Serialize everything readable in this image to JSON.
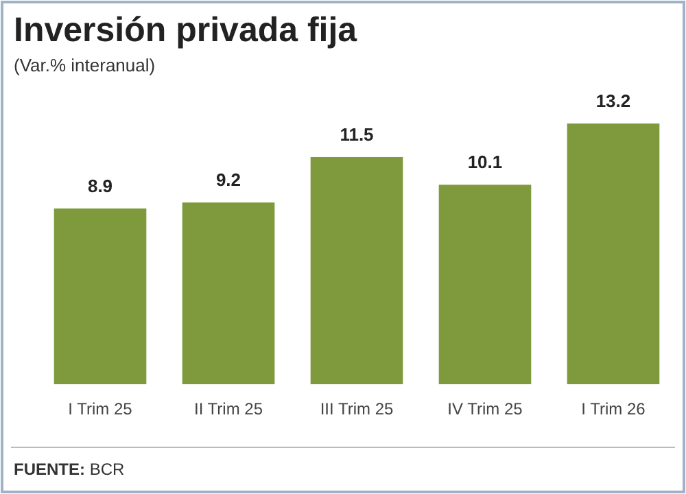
{
  "chart_data": {
    "type": "bar",
    "title": "Inversión privada fija",
    "subtitle": "(Var.% interanual)",
    "categories": [
      "I Trim 25",
      "II Trim 25",
      "III Trim 25",
      "IV Trim 25",
      "I Trim 26"
    ],
    "values": [
      8.9,
      9.2,
      11.5,
      10.1,
      13.2
    ],
    "color": "#7e9a3c",
    "tick_labels": "x",
    "data_labels": true,
    "annotations": [
      "FUENTE: BCR"
    ]
  }
}
